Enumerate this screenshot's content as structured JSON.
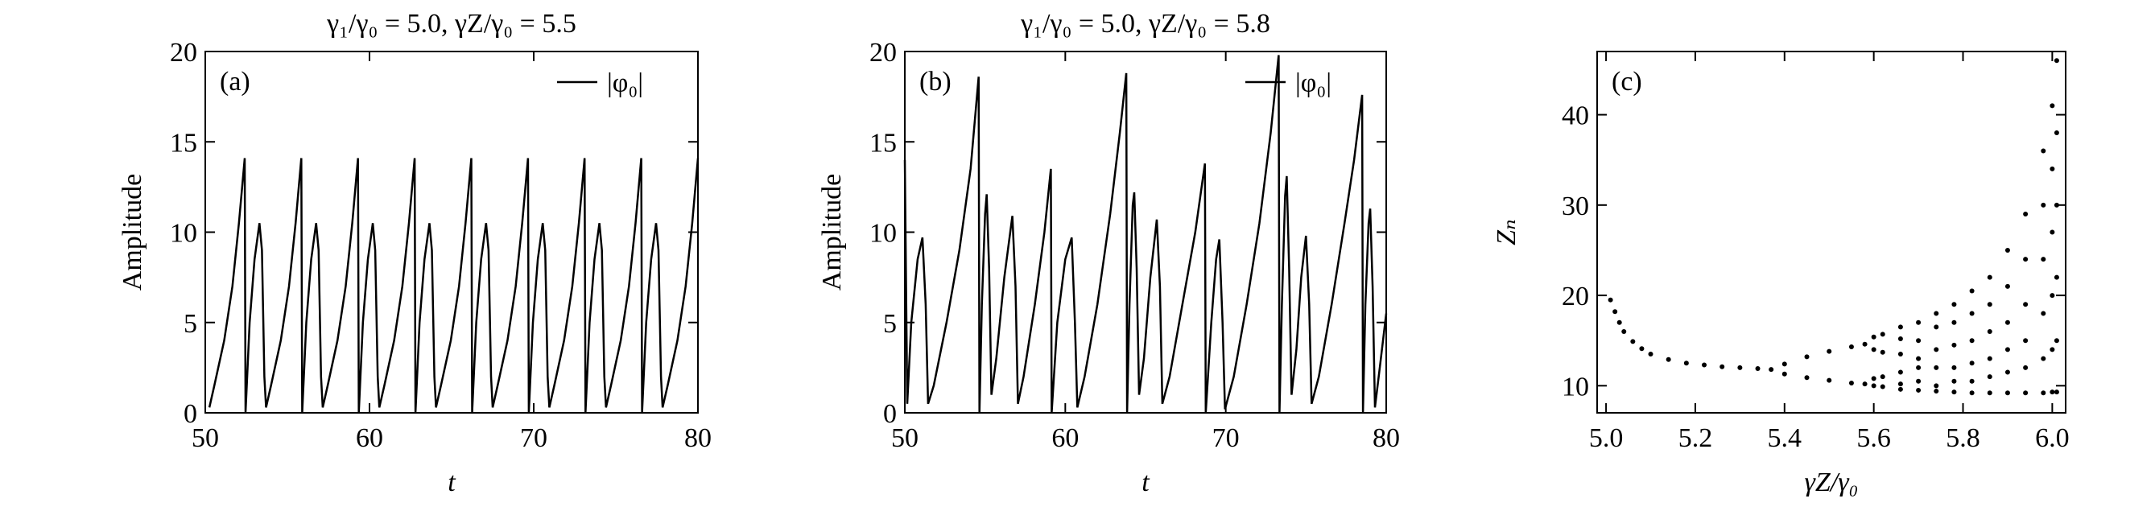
{
  "chart_data": [
    {
      "type": "line",
      "title": "γ₁/γ₀ = 5.0, γZ/γ₀ = 5.5",
      "panel_label": "(a)",
      "x_label": "t",
      "y_label": "Amplitude",
      "xlim": [
        50,
        80
      ],
      "xticks": [
        50,
        60,
        70,
        80
      ],
      "ylim": [
        0,
        20
      ],
      "yticks": [
        0,
        5,
        10,
        15,
        20
      ],
      "legend": "upper right",
      "x": [
        50.25,
        50.55,
        51.15,
        51.65,
        52.05,
        52.4,
        52.45,
        52.7,
        53.0,
        53.3,
        53.45,
        53.6,
        53.7,
        54.0,
        54.6,
        55.1,
        55.5,
        55.85,
        55.9,
        56.15,
        56.45,
        56.75,
        56.9,
        57.05,
        57.15,
        57.45,
        58.05,
        58.55,
        58.95,
        59.3,
        59.35,
        59.6,
        59.9,
        60.2,
        60.35,
        60.5,
        60.6,
        60.9,
        61.5,
        62.0,
        62.4,
        62.75,
        62.8,
        63.05,
        63.35,
        63.65,
        63.8,
        63.95,
        64.05,
        64.35,
        64.95,
        65.45,
        65.85,
        66.2,
        66.25,
        66.5,
        66.8,
        67.1,
        67.25,
        67.4,
        67.5,
        67.8,
        68.4,
        68.9,
        69.3,
        69.65,
        69.7,
        69.95,
        70.25,
        70.55,
        70.7,
        70.85,
        70.95,
        71.25,
        71.85,
        72.35,
        72.75,
        73.1,
        73.15,
        73.4,
        73.7,
        74.0,
        74.15,
        74.3,
        74.4,
        74.7,
        75.3,
        75.8,
        76.2,
        76.55,
        76.6,
        76.85,
        77.15,
        77.45,
        77.6,
        77.75,
        77.85,
        78.15,
        78.75,
        79.25,
        79.65,
        80.0
      ],
      "series": [
        {
          "name": "|φ₀|",
          "color": "#000000",
          "values": [
            0.3,
            1.5,
            4,
            7,
            10.5,
            14.1,
            0,
            5,
            8.5,
            10.5,
            9,
            2,
            0.3,
            1.5,
            4,
            7,
            10.5,
            14.1,
            0,
            5,
            8.5,
            10.5,
            9,
            2,
            0.3,
            1.5,
            4,
            7,
            10.5,
            14.1,
            0,
            5,
            8.5,
            10.5,
            9,
            2,
            0.3,
            1.5,
            4,
            7,
            10.5,
            14.1,
            0,
            5,
            8.5,
            10.5,
            9,
            2,
            0.3,
            1.5,
            4,
            7,
            10.5,
            14.1,
            0,
            5,
            8.5,
            10.5,
            9,
            2,
            0.3,
            1.5,
            4,
            7,
            10.5,
            14.1,
            0,
            5,
            8.5,
            10.5,
            9,
            2,
            0.3,
            1.5,
            4,
            7,
            10.5,
            14.1,
            0,
            5,
            8.5,
            10.5,
            9,
            2,
            0.3,
            1.5,
            4,
            7,
            10.5,
            14.1,
            0,
            5,
            8.5,
            10.5,
            9,
            2,
            0.3,
            1.5,
            4,
            7,
            10.5,
            14.1
          ]
        }
      ]
    },
    {
      "type": "line",
      "title": "γ₁/γ₀ = 5.0, γZ/γ₀ = 5.8",
      "panel_label": "(b)",
      "x_label": "t",
      "y_label": "Amplitude",
      "xlim": [
        50,
        80
      ],
      "xticks": [
        50,
        60,
        70,
        80
      ],
      "ylim": [
        0,
        20
      ],
      "yticks": [
        0,
        5,
        10,
        15,
        20
      ],
      "legend": "upper right",
      "x": [
        50,
        50.15,
        50.4,
        50.8,
        51.1,
        51.3,
        51.45,
        51.8,
        52.6,
        53.4,
        54.1,
        54.6,
        54.65,
        54.8,
        55.0,
        55.1,
        55.25,
        55.4,
        55.7,
        56.2,
        56.7,
        56.9,
        57.05,
        57.4,
        58.1,
        58.7,
        59.1,
        59.15,
        59.5,
        60.0,
        60.4,
        60.6,
        60.75,
        61.2,
        62.0,
        62.8,
        63.4,
        63.8,
        63.85,
        64.0,
        64.2,
        64.3,
        64.45,
        64.6,
        64.9,
        65.3,
        65.7,
        65.9,
        66.05,
        66.5,
        67.3,
        68.1,
        68.7,
        68.75,
        69.1,
        69.4,
        69.6,
        69.8,
        69.95,
        70.5,
        71.3,
        72.1,
        72.8,
        73.3,
        73.35,
        73.5,
        73.7,
        73.8,
        73.95,
        74.1,
        74.4,
        74.7,
        75.0,
        75.2,
        75.35,
        75.8,
        76.6,
        77.4,
        78.0,
        78.5,
        78.55,
        78.7,
        78.9,
        79.0,
        79.15,
        79.3,
        79.6,
        80
      ],
      "series": [
        {
          "name": "|φ₀|",
          "color": "#000000",
          "values": [
            14,
            0.5,
            5,
            8.5,
            9.7,
            6,
            0.5,
            1.5,
            5,
            9,
            13.5,
            18.6,
            0,
            6,
            11,
            12.1,
            8,
            1,
            3,
            7.5,
            10.9,
            7,
            0.5,
            2,
            6,
            10,
            13.5,
            0,
            5,
            8.5,
            9.7,
            5,
            0.3,
            2,
            6,
            11,
            15.5,
            18.8,
            0,
            6,
            11.5,
            12.2,
            8,
            1,
            3,
            7.5,
            10.7,
            7,
            0.5,
            2,
            6,
            10,
            13.8,
            0,
            5,
            8.5,
            9.6,
            5,
            0.2,
            2,
            6,
            10.5,
            15.5,
            19.8,
            0,
            6,
            12,
            13.1,
            8,
            1,
            3.5,
            7.5,
            9.8,
            6,
            0.5,
            2,
            6,
            10.5,
            14,
            17.6,
            0,
            6,
            10.5,
            11.3,
            7,
            0.3,
            2.5,
            5.5
          ]
        }
      ]
    },
    {
      "type": "scatter",
      "panel_label": "(c)",
      "x_label": "γZ/γ₀",
      "y_label": "Zₙ",
      "xlim": [
        4.98,
        6.03
      ],
      "xticks": [
        {
          "value": 5.0,
          "label": "5.0"
        },
        5.2,
        5.4,
        5.6,
        5.8,
        {
          "value": 6.0,
          "label": "6.0"
        }
      ],
      "ylim": [
        7,
        47
      ],
      "yticks": [
        10,
        20,
        30,
        40
      ],
      "x": [
        5.01,
        5.02,
        5.03,
        5.04,
        5.06,
        5.08,
        5.1,
        5.14,
        5.18,
        5.22,
        5.26,
        5.3,
        5.34,
        5.37,
        5.4,
        5.4,
        5.45,
        5.45,
        5.5,
        5.5,
        5.55,
        5.55,
        5.58,
        5.58,
        5.6,
        5.6,
        5.6,
        5.6,
        5.62,
        5.62,
        5.62,
        5.62,
        5.66,
        5.66,
        5.66,
        5.66,
        5.66,
        5.66,
        5.7,
        5.7,
        5.7,
        5.7,
        5.7,
        5.7,
        5.74,
        5.74,
        5.74,
        5.74,
        5.74,
        5.74,
        5.78,
        5.78,
        5.78,
        5.78,
        5.78,
        5.78,
        5.82,
        5.82,
        5.82,
        5.82,
        5.82,
        5.82,
        5.86,
        5.86,
        5.86,
        5.86,
        5.86,
        5.86,
        5.9,
        5.9,
        5.9,
        5.9,
        5.9,
        5.9,
        5.94,
        5.94,
        5.94,
        5.94,
        5.94,
        5.94,
        5.98,
        5.98,
        5.98,
        5.98,
        5.98,
        5.98,
        6.0,
        6.0,
        6.0,
        6.0,
        6.0,
        6.0,
        6.01,
        6.01,
        6.01,
        6.01,
        6.01,
        6.01
      ],
      "series": [
        {
          "color": "#000000",
          "values": [
            19.5,
            18.2,
            17,
            16,
            14.9,
            14.1,
            13.5,
            12.9,
            12.5,
            12.3,
            12.1,
            12,
            11.9,
            11.8,
            12.4,
            11.3,
            13.2,
            10.9,
            13.8,
            10.6,
            14.3,
            10.3,
            14.6,
            10.2,
            15.4,
            14.0,
            10.8,
            10.0,
            15.7,
            13.7,
            11.0,
            9.9,
            16.5,
            15.2,
            13.5,
            11.5,
            10.2,
            9.6,
            17,
            15,
            13,
            12,
            10.5,
            9.5,
            18,
            16.5,
            14,
            12,
            10,
            9.4,
            19,
            17,
            14.5,
            12,
            10.5,
            9.3,
            20.5,
            18,
            15,
            12.5,
            10.5,
            9.2,
            22,
            19,
            16,
            13,
            11,
            9.2,
            25,
            21,
            17,
            14,
            11.5,
            9.2,
            29,
            24,
            19,
            15,
            12,
            9.2,
            36,
            30,
            24,
            18,
            13,
            9.2,
            41,
            34,
            27,
            20,
            14,
            9.3,
            46,
            38,
            30,
            22,
            15,
            9.3
          ]
        }
      ]
    }
  ]
}
